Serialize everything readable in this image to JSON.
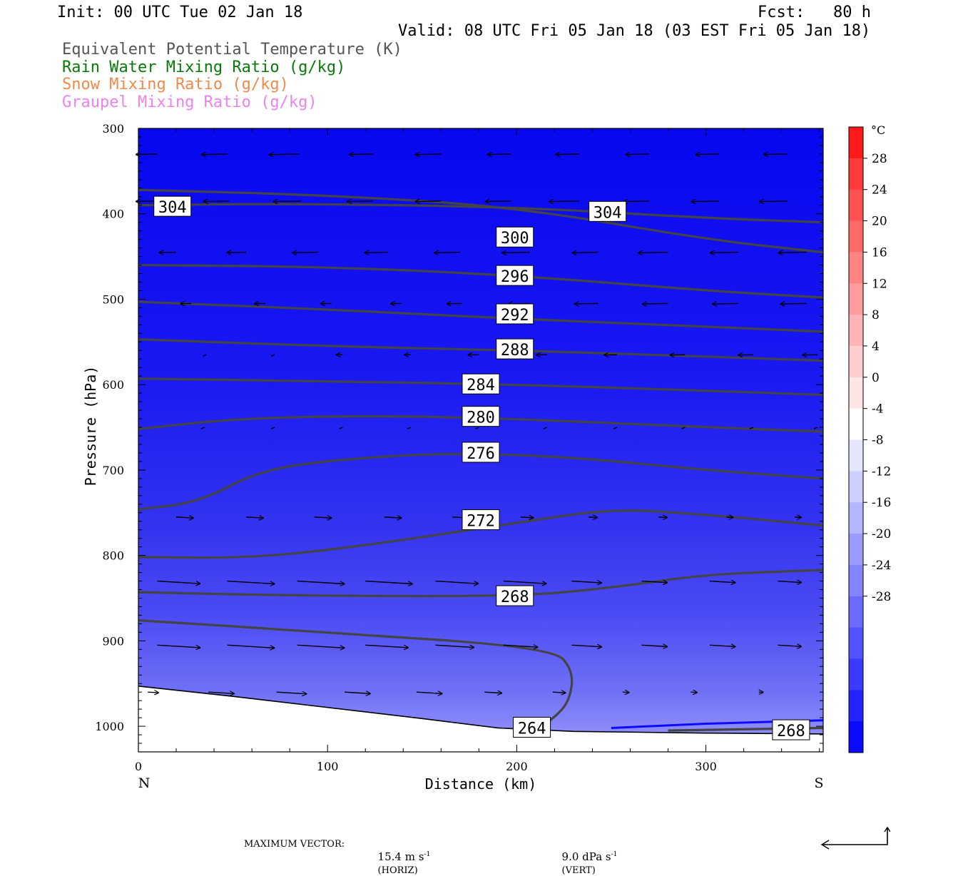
{
  "header": {
    "init": "Init: 00 UTC Tue 02 Jan 18",
    "fcst": "Fcst:   80 h",
    "valid": "Valid: 08 UTC Fri 05 Jan 18 (03 EST Fri 05 Jan 18)"
  },
  "legend": [
    {
      "label": "Equivalent Potential Temperature (K)",
      "color": "#555555"
    },
    {
      "label": "Rain Water Mixing Ratio (g/kg)",
      "color": "#0a7a0a"
    },
    {
      "label": "Snow Mixing Ratio (g/kg)",
      "color": "#f08a4a"
    },
    {
      "label": "Graupel Mixing Ratio (g/kg)",
      "color": "#ee82ee"
    }
  ],
  "footer": {
    "max_vector_label": "MAXIMUM VECTOR:",
    "horiz": "15.4 m s",
    "horiz_unit": "(HORIZ)",
    "vert": "9.0 dPa s",
    "vert_unit": "(VERT)",
    "exponent": "-1"
  },
  "chart_data": {
    "type": "cross-section",
    "xlabel": "Distance (km)",
    "ylabel": "Pressure (hPa)",
    "xlim": [
      0,
      362
    ],
    "ylim": [
      1030,
      300
    ],
    "x_ticks": [
      0,
      100,
      200,
      300
    ],
    "y_ticks": [
      300,
      400,
      500,
      600,
      700,
      800,
      900,
      1000
    ],
    "x_end_labels": {
      "left": "N",
      "right": "S"
    },
    "colorbar": {
      "unit": "°C",
      "tick_labels": [
        "28",
        "24",
        "20",
        "16",
        "12",
        "8",
        "4",
        "0",
        "-4",
        "-8",
        "-12",
        "-16",
        "-20",
        "-24",
        "-28"
      ],
      "colors": [
        "#ff1a1a",
        "#ff3b3b",
        "#ff5353",
        "#ff6b6b",
        "#ff8484",
        "#ff9c9c",
        "#ffb5b5",
        "#ffcece",
        "#ffe6e6",
        "#ffffff",
        "#e6e6ff",
        "#ceceff",
        "#b5b5ff",
        "#9c9cff",
        "#8484ff",
        "#6b6bff",
        "#5353ff",
        "#3b3bff",
        "#2323ff",
        "#0a0aff"
      ]
    },
    "theta_e_contours": [
      {
        "label": "304",
        "points": [
          [
            0,
            390
          ],
          [
            80,
            388
          ],
          [
            200,
            392
          ],
          [
            300,
            405
          ],
          [
            362,
            410
          ]
        ],
        "label_pos": [
          [
            18,
            392
          ],
          [
            248,
            398
          ]
        ]
      },
      {
        "label": "300",
        "points": [
          [
            0,
            372
          ],
          [
            100,
            378
          ],
          [
            200,
            392
          ],
          [
            300,
            430
          ],
          [
            362,
            445
          ]
        ],
        "label_pos": [
          [
            199,
            428
          ]
        ]
      },
      {
        "label": "296",
        "points": [
          [
            0,
            460
          ],
          [
            100,
            462
          ],
          [
            200,
            472
          ],
          [
            300,
            490
          ],
          [
            362,
            498
          ]
        ],
        "label_pos": [
          [
            199,
            473
          ]
        ]
      },
      {
        "label": "292",
        "points": [
          [
            0,
            503
          ],
          [
            100,
            512
          ],
          [
            200,
            523
          ],
          [
            300,
            532
          ],
          [
            362,
            538
          ]
        ],
        "label_pos": [
          [
            199,
            518
          ]
        ]
      },
      {
        "label": "288",
        "points": [
          [
            0,
            547
          ],
          [
            100,
            555
          ],
          [
            200,
            560
          ],
          [
            300,
            567
          ],
          [
            362,
            572
          ]
        ],
        "label_pos": [
          [
            199,
            559
          ]
        ]
      },
      {
        "label": "284",
        "points": [
          [
            0,
            593
          ],
          [
            100,
            596
          ],
          [
            200,
            600
          ],
          [
            300,
            607
          ],
          [
            362,
            612
          ]
        ],
        "label_pos": [
          [
            181,
            600
          ]
        ]
      },
      {
        "label": "280",
        "points": [
          [
            0,
            652
          ],
          [
            50,
            640
          ],
          [
            120,
            636
          ],
          [
            200,
            640
          ],
          [
            300,
            650
          ],
          [
            362,
            655
          ]
        ],
        "label_pos": [
          [
            181,
            638
          ]
        ]
      },
      {
        "label": "276",
        "points": [
          [
            0,
            746
          ],
          [
            32,
            738
          ],
          [
            66,
            698
          ],
          [
            120,
            685
          ],
          [
            170,
            680
          ],
          [
            230,
            685
          ],
          [
            300,
            700
          ],
          [
            362,
            710
          ]
        ],
        "label_pos": [
          [
            181,
            680
          ]
        ]
      },
      {
        "label": "272",
        "points": [
          [
            0,
            802
          ],
          [
            60,
            803
          ],
          [
            115,
            790
          ],
          [
            200,
            762
          ],
          [
            250,
            745
          ],
          [
            300,
            752
          ],
          [
            362,
            765
          ]
        ],
        "label_pos": [
          [
            181,
            759
          ]
        ]
      },
      {
        "label": "268",
        "points": [
          [
            0,
            843
          ],
          [
            80,
            847
          ],
          [
            200,
            848
          ],
          [
            250,
            838
          ],
          [
            300,
            822
          ],
          [
            362,
            817
          ]
        ],
        "label_pos": [
          [
            199,
            848
          ]
        ]
      },
      {
        "label": "264",
        "points": [
          [
            0,
            876
          ],
          [
            100,
            890
          ],
          [
            219,
            908
          ],
          [
            230,
            935
          ],
          [
            228,
            970
          ],
          [
            220,
            990
          ],
          [
            210,
            1004
          ]
        ],
        "label_pos": [
          [
            208,
            1002
          ]
        ]
      },
      {
        "label": "268",
        "points": [
          [
            280,
            1005
          ],
          [
            362,
            1002
          ]
        ],
        "label_pos": [
          [
            345,
            1005
          ]
        ]
      }
    ],
    "rain_contour": {
      "color": "#0a0aff",
      "points": [
        [
          250,
          1002
        ],
        [
          300,
          997
        ],
        [
          362,
          993
        ]
      ]
    },
    "terrain": [
      [
        0,
        953
      ],
      [
        50,
        965
      ],
      [
        100,
        978
      ],
      [
        150,
        991
      ],
      [
        190,
        1002
      ],
      [
        230,
        1006
      ],
      [
        300,
        1008
      ],
      [
        362,
        1009
      ]
    ],
    "wind_vectors": [
      {
        "p": 330,
        "items": [
          [
            10,
            10
          ],
          [
            47,
            12
          ],
          [
            85,
            14
          ],
          [
            124,
            11
          ],
          [
            160,
            12
          ],
          [
            197,
            11
          ],
          [
            233,
            11
          ],
          [
            270,
            11
          ],
          [
            307,
            11
          ],
          [
            343,
            11
          ]
        ]
      },
      {
        "p": 385,
        "items": [
          [
            10,
            10
          ],
          [
            48,
            12
          ],
          [
            86,
            13
          ],
          [
            124,
            12
          ],
          [
            160,
            12
          ],
          [
            197,
            12
          ],
          [
            233,
            14
          ],
          [
            270,
            12
          ],
          [
            307,
            13
          ],
          [
            343,
            13
          ]
        ]
      },
      {
        "p": 445,
        "items": [
          [
            20,
            8
          ],
          [
            57,
            9
          ],
          [
            95,
            12
          ],
          [
            132,
            11
          ],
          [
            170,
            12
          ],
          [
            207,
            13
          ],
          [
            243,
            12
          ],
          [
            280,
            14
          ],
          [
            317,
            13
          ],
          [
            353,
            13
          ]
        ]
      },
      {
        "p": 505,
        "items": [
          [
            28,
            5
          ],
          [
            67,
            5
          ],
          [
            102,
            5
          ],
          [
            139,
            5
          ],
          [
            171,
            7
          ],
          [
            207,
            10
          ],
          [
            243,
            11
          ],
          [
            280,
            12
          ],
          [
            317,
            12
          ],
          [
            353,
            12
          ]
        ]
      },
      {
        "p": 565,
        "items": [
          [
            36,
            1
          ],
          [
            72,
            1
          ],
          [
            108,
            3
          ],
          [
            144,
            3
          ],
          [
            180,
            5
          ],
          [
            216,
            5
          ],
          [
            253,
            6
          ],
          [
            289,
            7
          ],
          [
            325,
            7
          ],
          [
            359,
            7
          ]
        ]
      },
      {
        "p": 650,
        "items": [
          [
            35,
            1
          ],
          [
            72,
            1
          ],
          [
            108,
            1
          ],
          [
            144,
            1
          ],
          [
            180,
            1
          ],
          [
            216,
            1
          ],
          [
            253,
            1
          ],
          [
            289,
            1
          ],
          [
            325,
            1
          ],
          [
            359,
            1
          ]
        ]
      },
      {
        "p": 755,
        "items": [
          [
            20,
            -8
          ],
          [
            57,
            -8
          ],
          [
            93,
            -8
          ],
          [
            130,
            -8
          ],
          [
            166,
            -8
          ],
          [
            202,
            -6
          ],
          [
            238,
            -4
          ],
          [
            275,
            -4
          ],
          [
            311,
            -3
          ],
          [
            347,
            -3
          ]
        ]
      },
      {
        "p": 830,
        "items": [
          [
            10,
            -20
          ],
          [
            47,
            -22
          ],
          [
            84,
            -22
          ],
          [
            120,
            -22
          ],
          [
            157,
            -20
          ],
          [
            193,
            -20
          ],
          [
            229,
            -14
          ],
          [
            266,
            -12
          ],
          [
            302,
            -12
          ],
          [
            338,
            -11
          ]
        ]
      },
      {
        "p": 905,
        "items": [
          [
            10,
            -20
          ],
          [
            47,
            -22
          ],
          [
            84,
            -22
          ],
          [
            120,
            -20
          ],
          [
            157,
            -18
          ],
          [
            193,
            -16
          ],
          [
            229,
            -14
          ],
          [
            266,
            -12
          ],
          [
            302,
            -12
          ],
          [
            338,
            -11
          ]
        ]
      },
      {
        "p": 960,
        "items": [
          [
            5,
            -5
          ],
          [
            37,
            -12
          ],
          [
            73,
            -14
          ],
          [
            109,
            -12
          ],
          [
            147,
            -12
          ],
          [
            183,
            -8
          ],
          [
            219,
            -6
          ],
          [
            256,
            -3
          ],
          [
            292,
            -3
          ],
          [
            328,
            -2
          ]
        ]
      }
    ]
  }
}
